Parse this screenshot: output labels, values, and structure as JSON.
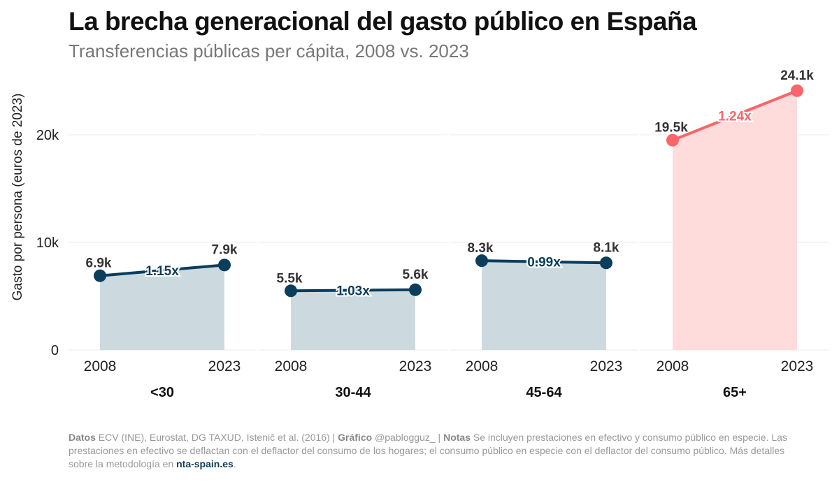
{
  "title": "La brecha generacional del gasto público en España",
  "subtitle": "Transferencias públicas per cápita, 2008 vs. 2023",
  "footer": {
    "datos_label": "Datos",
    "datos_text": " ECV (INE), Eurostat, DG TAXUD, Istenič et al. (2016) | ",
    "grafico_label": "Gráfico",
    "grafico_text": " @pablogguz_ | ",
    "notas_label": "Notas",
    "notas_text": " Se incluyen prestaciones en efectivo y consumo público en especie. Las prestaciones en efectivo se deflactan con el deflactor del consumo de los hogares; el consumo público en especie con el deflactor del consumo público. Más detalles sobre la metodología en ",
    "link_text": "nta-spain.es",
    "end": "."
  },
  "colors": {
    "young": "#0b3d5c",
    "young_fill": "#ccdae0",
    "old": "#f8666a",
    "old_fill": "#fedcdc",
    "grid": "#ebebeb"
  },
  "chart_data": {
    "type": "line",
    "ylabel": "Gasto por persona (euros de 2023)",
    "ylim": [
      0,
      25500
    ],
    "yticks": [
      0,
      10000,
      20000
    ],
    "ytick_labels": [
      "0",
      "10k",
      "20k"
    ],
    "x": [
      "2008",
      "2023"
    ],
    "grid": "horizontal",
    "panels": [
      {
        "label": "<30",
        "values": [
          6900,
          7900
        ],
        "value_labels": [
          "6.9k",
          "7.9k"
        ],
        "ratio": "1.15x",
        "highlight": false
      },
      {
        "label": "30-44",
        "values": [
          5500,
          5600
        ],
        "value_labels": [
          "5.5k",
          "5.6k"
        ],
        "ratio": "1.03x",
        "highlight": false
      },
      {
        "label": "45-64",
        "values": [
          8300,
          8100
        ],
        "value_labels": [
          "8.3k",
          "8.1k"
        ],
        "ratio": "0.99x",
        "highlight": false
      },
      {
        "label": "65+",
        "values": [
          19500,
          24100
        ],
        "value_labels": [
          "19.5k",
          "24.1k"
        ],
        "ratio": "1.24x",
        "highlight": true
      }
    ]
  }
}
